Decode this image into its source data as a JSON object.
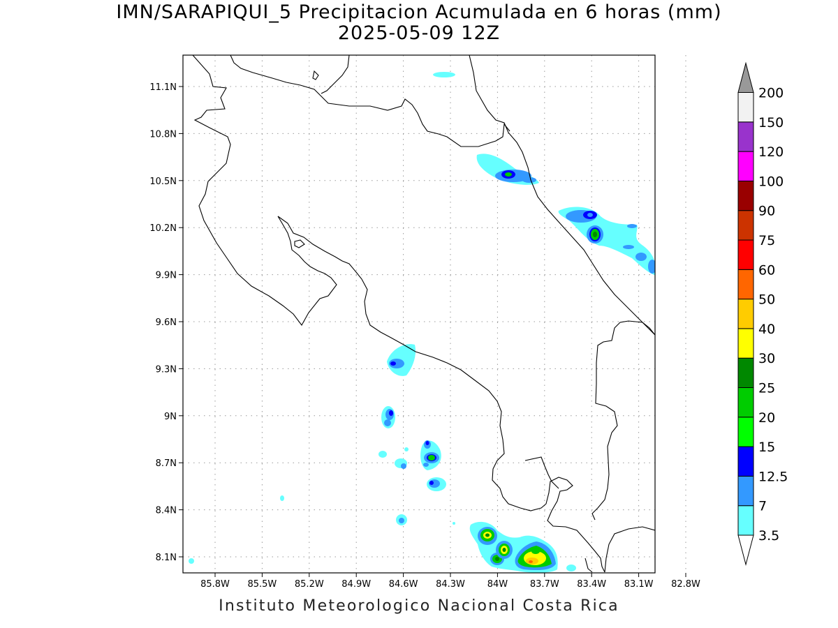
{
  "header": {
    "title": "IMN/SARAPIQUI_5 Precipitacion Acumulada en 6 horas (mm)",
    "subtitle": "2025-05-09 12Z"
  },
  "footer": {
    "credit": "Instituto Meteorologico Nacional Costa Rica"
  },
  "map": {
    "lon_range": [
      -86.0,
      -83.0
    ],
    "lat_range": [
      8.0,
      11.3
    ],
    "grid": true,
    "grid_style": "dotted",
    "lat_ticks": [
      "11.1N",
      "10.8N",
      "10.5N",
      "10.2N",
      "9.9N",
      "9.6N",
      "9.3N",
      "9N",
      "8.7N",
      "8.4N",
      "8.1N"
    ],
    "lon_ticks": [
      "85.8W",
      "85.5W",
      "85.2W",
      "84.9W",
      "84.6W",
      "84.3W",
      "84W",
      "83.7W",
      "83.4W",
      "83.1W",
      "82.8W"
    ]
  },
  "colorbar": {
    "labels": [
      "3.5",
      "7",
      "12.5",
      "15",
      "20",
      "25",
      "30",
      "40",
      "50",
      "60",
      "75",
      "90",
      "100",
      "120",
      "150",
      "200"
    ],
    "colors": [
      "#66ffff",
      "#3399ff",
      "#0000ff",
      "#00ff00",
      "#00cc00",
      "#008800",
      "#ffff00",
      "#ffcc00",
      "#ff6600",
      "#ff0000",
      "#cc3300",
      "#990000",
      "#ff00ff",
      "#9933cc",
      "#f2f2f2"
    ],
    "over_color": "#999999",
    "under_color": "#ffffff"
  }
}
